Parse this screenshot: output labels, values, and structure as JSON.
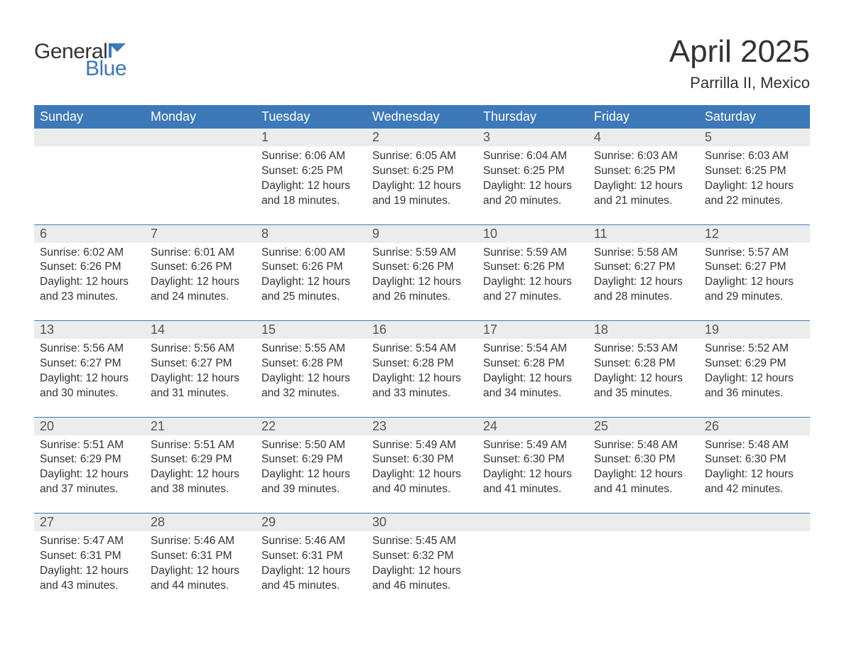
{
  "logo": {
    "text1": "General",
    "text2": "Blue",
    "flag_color": "#3d78b8"
  },
  "title": "April 2025",
  "location": "Parrilla II, Mexico",
  "colors": {
    "header_bg": "#3d78b8",
    "header_text": "#ffffff",
    "daynum_bg": "#ececec",
    "daynum_text": "#555555",
    "body_text": "#333333",
    "rule": "#3d78b8",
    "page_bg": "#ffffff"
  },
  "typography": {
    "title_fontsize": 44,
    "location_fontsize": 22,
    "dow_fontsize": 18,
    "daynum_fontsize": 18,
    "body_fontsize": 15.5,
    "font_family": "Arial"
  },
  "days_of_week": [
    "Sunday",
    "Monday",
    "Tuesday",
    "Wednesday",
    "Thursday",
    "Friday",
    "Saturday"
  ],
  "weeks": [
    {
      "cells": [
        {
          "n": "",
          "sunrise": "",
          "sunset": "",
          "daylight": ""
        },
        {
          "n": "",
          "sunrise": "",
          "sunset": "",
          "daylight": ""
        },
        {
          "n": "1",
          "sunrise": "Sunrise: 6:06 AM",
          "sunset": "Sunset: 6:25 PM",
          "daylight": "Daylight: 12 hours and 18 minutes."
        },
        {
          "n": "2",
          "sunrise": "Sunrise: 6:05 AM",
          "sunset": "Sunset: 6:25 PM",
          "daylight": "Daylight: 12 hours and 19 minutes."
        },
        {
          "n": "3",
          "sunrise": "Sunrise: 6:04 AM",
          "sunset": "Sunset: 6:25 PM",
          "daylight": "Daylight: 12 hours and 20 minutes."
        },
        {
          "n": "4",
          "sunrise": "Sunrise: 6:03 AM",
          "sunset": "Sunset: 6:25 PM",
          "daylight": "Daylight: 12 hours and 21 minutes."
        },
        {
          "n": "5",
          "sunrise": "Sunrise: 6:03 AM",
          "sunset": "Sunset: 6:25 PM",
          "daylight": "Daylight: 12 hours and 22 minutes."
        }
      ]
    },
    {
      "cells": [
        {
          "n": "6",
          "sunrise": "Sunrise: 6:02 AM",
          "sunset": "Sunset: 6:26 PM",
          "daylight": "Daylight: 12 hours and 23 minutes."
        },
        {
          "n": "7",
          "sunrise": "Sunrise: 6:01 AM",
          "sunset": "Sunset: 6:26 PM",
          "daylight": "Daylight: 12 hours and 24 minutes."
        },
        {
          "n": "8",
          "sunrise": "Sunrise: 6:00 AM",
          "sunset": "Sunset: 6:26 PM",
          "daylight": "Daylight: 12 hours and 25 minutes."
        },
        {
          "n": "9",
          "sunrise": "Sunrise: 5:59 AM",
          "sunset": "Sunset: 6:26 PM",
          "daylight": "Daylight: 12 hours and 26 minutes."
        },
        {
          "n": "10",
          "sunrise": "Sunrise: 5:59 AM",
          "sunset": "Sunset: 6:26 PM",
          "daylight": "Daylight: 12 hours and 27 minutes."
        },
        {
          "n": "11",
          "sunrise": "Sunrise: 5:58 AM",
          "sunset": "Sunset: 6:27 PM",
          "daylight": "Daylight: 12 hours and 28 minutes."
        },
        {
          "n": "12",
          "sunrise": "Sunrise: 5:57 AM",
          "sunset": "Sunset: 6:27 PM",
          "daylight": "Daylight: 12 hours and 29 minutes."
        }
      ]
    },
    {
      "cells": [
        {
          "n": "13",
          "sunrise": "Sunrise: 5:56 AM",
          "sunset": "Sunset: 6:27 PM",
          "daylight": "Daylight: 12 hours and 30 minutes."
        },
        {
          "n": "14",
          "sunrise": "Sunrise: 5:56 AM",
          "sunset": "Sunset: 6:27 PM",
          "daylight": "Daylight: 12 hours and 31 minutes."
        },
        {
          "n": "15",
          "sunrise": "Sunrise: 5:55 AM",
          "sunset": "Sunset: 6:28 PM",
          "daylight": "Daylight: 12 hours and 32 minutes."
        },
        {
          "n": "16",
          "sunrise": "Sunrise: 5:54 AM",
          "sunset": "Sunset: 6:28 PM",
          "daylight": "Daylight: 12 hours and 33 minutes."
        },
        {
          "n": "17",
          "sunrise": "Sunrise: 5:54 AM",
          "sunset": "Sunset: 6:28 PM",
          "daylight": "Daylight: 12 hours and 34 minutes."
        },
        {
          "n": "18",
          "sunrise": "Sunrise: 5:53 AM",
          "sunset": "Sunset: 6:28 PM",
          "daylight": "Daylight: 12 hours and 35 minutes."
        },
        {
          "n": "19",
          "sunrise": "Sunrise: 5:52 AM",
          "sunset": "Sunset: 6:29 PM",
          "daylight": "Daylight: 12 hours and 36 minutes."
        }
      ]
    },
    {
      "cells": [
        {
          "n": "20",
          "sunrise": "Sunrise: 5:51 AM",
          "sunset": "Sunset: 6:29 PM",
          "daylight": "Daylight: 12 hours and 37 minutes."
        },
        {
          "n": "21",
          "sunrise": "Sunrise: 5:51 AM",
          "sunset": "Sunset: 6:29 PM",
          "daylight": "Daylight: 12 hours and 38 minutes."
        },
        {
          "n": "22",
          "sunrise": "Sunrise: 5:50 AM",
          "sunset": "Sunset: 6:29 PM",
          "daylight": "Daylight: 12 hours and 39 minutes."
        },
        {
          "n": "23",
          "sunrise": "Sunrise: 5:49 AM",
          "sunset": "Sunset: 6:30 PM",
          "daylight": "Daylight: 12 hours and 40 minutes."
        },
        {
          "n": "24",
          "sunrise": "Sunrise: 5:49 AM",
          "sunset": "Sunset: 6:30 PM",
          "daylight": "Daylight: 12 hours and 41 minutes."
        },
        {
          "n": "25",
          "sunrise": "Sunrise: 5:48 AM",
          "sunset": "Sunset: 6:30 PM",
          "daylight": "Daylight: 12 hours and 41 minutes."
        },
        {
          "n": "26",
          "sunrise": "Sunrise: 5:48 AM",
          "sunset": "Sunset: 6:30 PM",
          "daylight": "Daylight: 12 hours and 42 minutes."
        }
      ]
    },
    {
      "cells": [
        {
          "n": "27",
          "sunrise": "Sunrise: 5:47 AM",
          "sunset": "Sunset: 6:31 PM",
          "daylight": "Daylight: 12 hours and 43 minutes."
        },
        {
          "n": "28",
          "sunrise": "Sunrise: 5:46 AM",
          "sunset": "Sunset: 6:31 PM",
          "daylight": "Daylight: 12 hours and 44 minutes."
        },
        {
          "n": "29",
          "sunrise": "Sunrise: 5:46 AM",
          "sunset": "Sunset: 6:31 PM",
          "daylight": "Daylight: 12 hours and 45 minutes."
        },
        {
          "n": "30",
          "sunrise": "Sunrise: 5:45 AM",
          "sunset": "Sunset: 6:32 PM",
          "daylight": "Daylight: 12 hours and 46 minutes."
        },
        {
          "n": "",
          "sunrise": "",
          "sunset": "",
          "daylight": ""
        },
        {
          "n": "",
          "sunrise": "",
          "sunset": "",
          "daylight": ""
        },
        {
          "n": "",
          "sunrise": "",
          "sunset": "",
          "daylight": ""
        }
      ]
    }
  ]
}
